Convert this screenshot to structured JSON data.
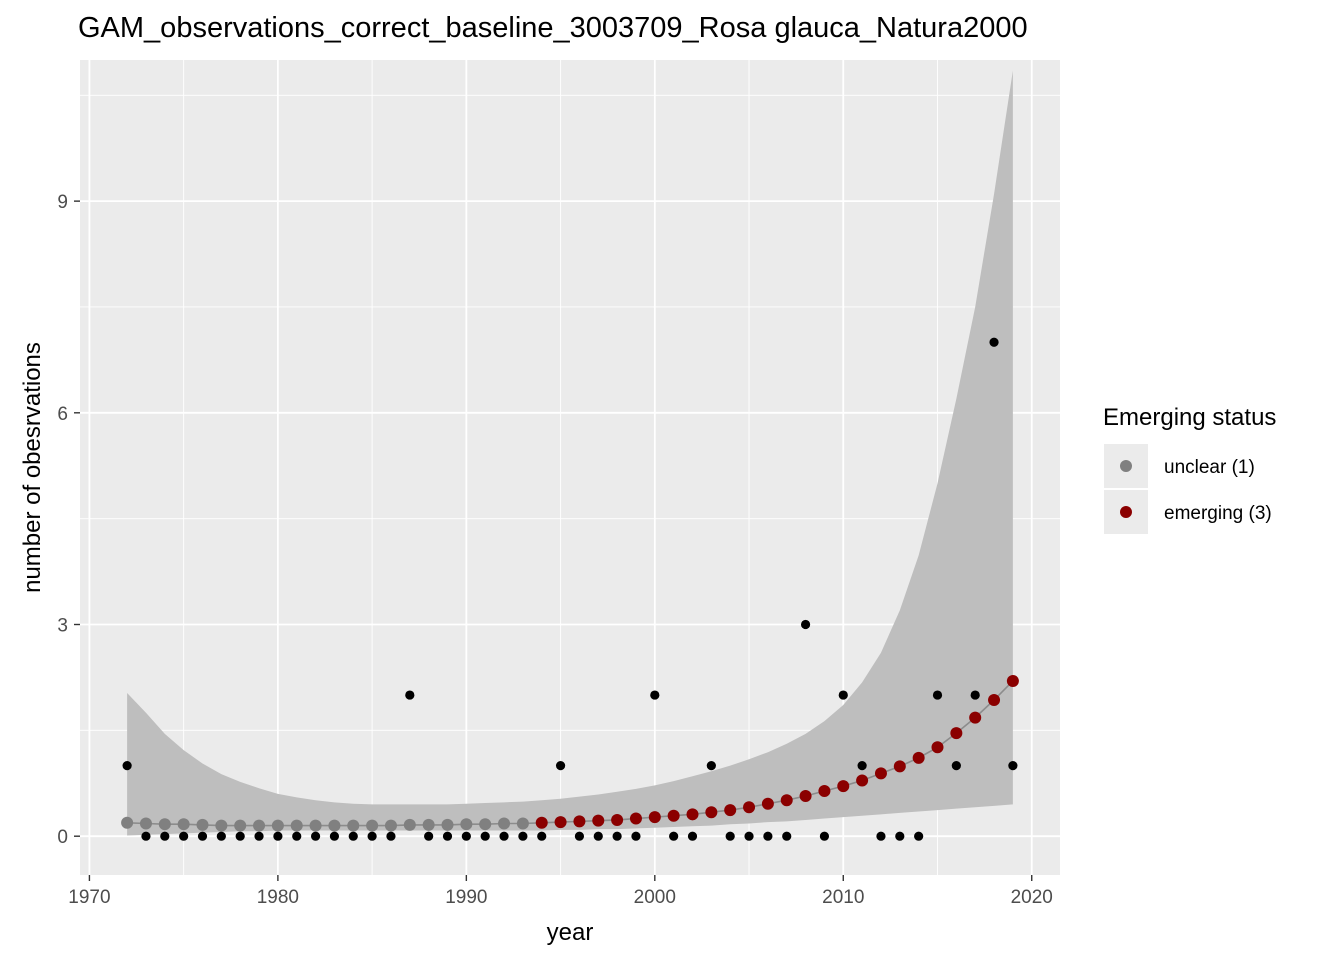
{
  "chart_data": {
    "type": "scatter",
    "title": "GAM_observations_correct_baseline_3003709_Rosa glauca_Natura2000",
    "xlabel": "year",
    "ylabel": "number of obesrvations",
    "xlim": [
      1969.5,
      2021.5
    ],
    "ylim": [
      -0.55,
      11.0
    ],
    "x_ticks": [
      1970,
      1980,
      1990,
      2000,
      2010,
      2020
    ],
    "y_ticks": [
      0,
      3,
      6,
      9
    ],
    "x_tick_labels": [
      "1970",
      "1980",
      "1990",
      "2000",
      "2010",
      "2020"
    ],
    "y_tick_labels": [
      "0",
      "3",
      "6",
      "9"
    ],
    "grid": true,
    "legend": {
      "title": "Emerging status",
      "position": "right",
      "items": [
        {
          "label": "unclear (1)",
          "color": "#808080"
        },
        {
          "label": "emerging (3)",
          "color": "#8b0000"
        }
      ]
    },
    "colors": {
      "panel": "#ebebeb",
      "grid": "#ffffff",
      "ribbon": "#bebebe",
      "observed": "#000000",
      "unclear": "#808080",
      "emerging": "#8b0000",
      "fit_line": "#8c8c8c"
    },
    "observed": {
      "x": [
        1972,
        1973,
        1974,
        1975,
        1976,
        1977,
        1978,
        1979,
        1980,
        1981,
        1982,
        1983,
        1984,
        1985,
        1986,
        1987,
        1988,
        1989,
        1990,
        1991,
        1992,
        1993,
        1994,
        1995,
        1996,
        1997,
        1998,
        1999,
        2000,
        2001,
        2002,
        2003,
        2004,
        2005,
        2006,
        2007,
        2008,
        2009,
        2010,
        2011,
        2012,
        2013,
        2014,
        2015,
        2016,
        2017,
        2018,
        2019
      ],
      "y": [
        1,
        0,
        0,
        0,
        0,
        0,
        0,
        0,
        0,
        0,
        0,
        0,
        0,
        0,
        0,
        2,
        0,
        0,
        0,
        0,
        0,
        0,
        0,
        1,
        0,
        0,
        0,
        0,
        2,
        0,
        0,
        1,
        0,
        0,
        0,
        0,
        3,
        0,
        2,
        1,
        0,
        0,
        0,
        2,
        1,
        2,
        7,
        1
      ]
    },
    "fit": {
      "x": [
        1972,
        1973,
        1974,
        1975,
        1976,
        1977,
        1978,
        1979,
        1980,
        1981,
        1982,
        1983,
        1984,
        1985,
        1986,
        1987,
        1988,
        1989,
        1990,
        1991,
        1992,
        1993,
        1994,
        1995,
        1996,
        1997,
        1998,
        1999,
        2000,
        2001,
        2002,
        2003,
        2004,
        2005,
        2006,
        2007,
        2008,
        2009,
        2010,
        2011,
        2012,
        2013,
        2014,
        2015,
        2016,
        2017,
        2018,
        2019
      ],
      "y": [
        0.19,
        0.18,
        0.17,
        0.17,
        0.16,
        0.15,
        0.15,
        0.15,
        0.15,
        0.15,
        0.15,
        0.15,
        0.15,
        0.15,
        0.15,
        0.16,
        0.16,
        0.16,
        0.17,
        0.17,
        0.18,
        0.18,
        0.19,
        0.2,
        0.21,
        0.22,
        0.23,
        0.25,
        0.27,
        0.29,
        0.31,
        0.34,
        0.37,
        0.41,
        0.46,
        0.51,
        0.57,
        0.64,
        0.71,
        0.79,
        0.89,
        0.99,
        1.11,
        1.26,
        1.46,
        1.68,
        1.93,
        2.2
      ],
      "lower": [
        0.01,
        0.02,
        0.03,
        0.04,
        0.05,
        0.06,
        0.07,
        0.07,
        0.08,
        0.08,
        0.08,
        0.08,
        0.08,
        0.08,
        0.08,
        0.08,
        0.08,
        0.08,
        0.08,
        0.08,
        0.08,
        0.08,
        0.08,
        0.09,
        0.09,
        0.1,
        0.1,
        0.11,
        0.12,
        0.13,
        0.14,
        0.15,
        0.17,
        0.18,
        0.2,
        0.21,
        0.23,
        0.25,
        0.27,
        0.29,
        0.31,
        0.33,
        0.35,
        0.37,
        0.39,
        0.41,
        0.43,
        0.45
      ],
      "upper": [
        2.03,
        1.75,
        1.45,
        1.22,
        1.03,
        0.88,
        0.77,
        0.68,
        0.6,
        0.55,
        0.51,
        0.48,
        0.46,
        0.45,
        0.45,
        0.45,
        0.45,
        0.45,
        0.46,
        0.47,
        0.48,
        0.49,
        0.51,
        0.53,
        0.56,
        0.59,
        0.63,
        0.67,
        0.72,
        0.78,
        0.85,
        0.92,
        1.0,
        1.09,
        1.19,
        1.31,
        1.45,
        1.63,
        1.86,
        2.18,
        2.6,
        3.2,
        3.98,
        5.0,
        6.2,
        7.5,
        9.1,
        10.85
      ],
      "status": [
        "unclear",
        "unclear",
        "unclear",
        "unclear",
        "unclear",
        "unclear",
        "unclear",
        "unclear",
        "unclear",
        "unclear",
        "unclear",
        "unclear",
        "unclear",
        "unclear",
        "unclear",
        "unclear",
        "unclear",
        "unclear",
        "unclear",
        "unclear",
        "unclear",
        "unclear",
        "emerging",
        "emerging",
        "emerging",
        "emerging",
        "emerging",
        "emerging",
        "emerging",
        "emerging",
        "emerging",
        "emerging",
        "emerging",
        "emerging",
        "emerging",
        "emerging",
        "emerging",
        "emerging",
        "emerging",
        "emerging",
        "emerging",
        "emerging",
        "emerging",
        "emerging",
        "emerging",
        "emerging",
        "emerging",
        "emerging"
      ]
    }
  }
}
